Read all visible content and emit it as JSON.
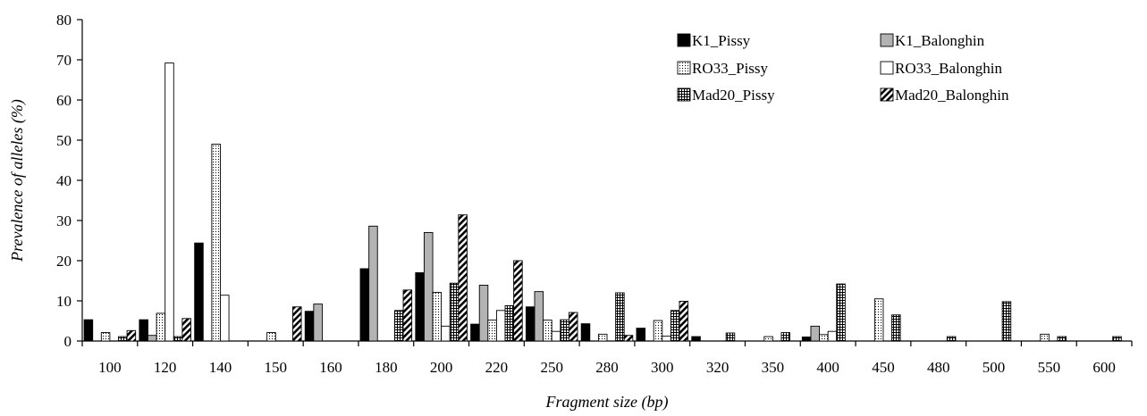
{
  "chart_data": {
    "type": "bar",
    "title": "",
    "xlabel": "Fragment size (bp)",
    "ylabel": "Prevalence of alleles (%)",
    "ylim": [
      0,
      80
    ],
    "yticks": [
      0,
      10,
      20,
      30,
      40,
      50,
      60,
      70,
      80
    ],
    "grid": false,
    "legend_position": "top-right",
    "categories": [
      "100",
      "120",
      "140",
      "150",
      "160",
      "180",
      "200",
      "220",
      "250",
      "280",
      "300",
      "320",
      "350",
      "400",
      "450",
      "480",
      "500",
      "550",
      "600"
    ],
    "series": [
      {
        "name": "K1_Pissy",
        "pattern": "solid-black",
        "values": [
          5.3,
          5.3,
          24.4,
          0,
          7.4,
          18,
          17,
          4.2,
          8.5,
          4.3,
          3.2,
          1.1,
          0,
          1,
          0,
          0,
          0,
          0,
          0
        ]
      },
      {
        "name": "K1_Balonghin",
        "pattern": "solid-gray",
        "values": [
          0,
          1.4,
          0,
          0,
          9.2,
          28.6,
          27,
          13.9,
          12.3,
          0,
          0,
          0,
          0,
          3.7,
          0,
          0,
          0,
          0,
          0
        ]
      },
      {
        "name": "RO33_Pissy",
        "pattern": "dotted",
        "values": [
          2.1,
          6.9,
          49,
          2.1,
          0,
          0,
          12.1,
          5.2,
          5.2,
          1.7,
          5.1,
          0,
          1.1,
          1.6,
          10.5,
          0,
          0,
          1.7,
          0
        ]
      },
      {
        "name": "RO33_Balonghin",
        "pattern": "white",
        "values": [
          0,
          69.2,
          11.4,
          0,
          0,
          0,
          3.7,
          7.6,
          2.4,
          0,
          1.2,
          0,
          0,
          2.4,
          0,
          0,
          0,
          0,
          0
        ]
      },
      {
        "name": "Mad20_Pissy",
        "pattern": "grid",
        "values": [
          1.1,
          1.1,
          0,
          0,
          0,
          7.6,
          14.4,
          8.8,
          5.3,
          12,
          7.6,
          2,
          2.1,
          14.2,
          6.5,
          1.1,
          9.8,
          1.1,
          1.1
        ]
      },
      {
        "name": "Mad20_Balonghin",
        "pattern": "hatch",
        "values": [
          2.6,
          5.6,
          0,
          8.5,
          0,
          12.7,
          31.4,
          20,
          7.1,
          1.4,
          9.9,
          0,
          0,
          0,
          0,
          0,
          0,
          0,
          0
        ]
      }
    ]
  }
}
